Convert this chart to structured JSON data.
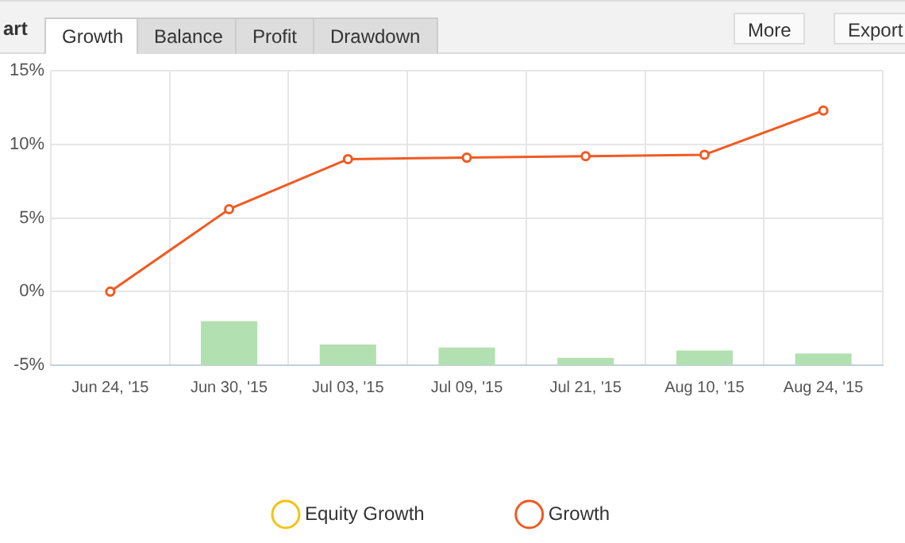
{
  "chart_data": {
    "type": "line",
    "title": "art",
    "annotations": [
      "Growth",
      "Balance",
      "Profit",
      "Drawdown",
      "More",
      "Export"
    ],
    "categories": [
      "Jun 24, '15",
      "Jun 30, '15",
      "Jul 03, '15",
      "Jul 09, '15",
      "Jul 21, '15",
      "Aug 10, '15",
      "Aug 24, '15"
    ],
    "series": [
      {
        "type": "bar",
        "color": "#b3e0b0",
        "base": [
          null,
          -5,
          -5,
          -5,
          -5,
          -5,
          -5
        ],
        "values": [
          null,
          3.0,
          1.4,
          1.2,
          0.5,
          1.0,
          0.8
        ]
      },
      {
        "name": "Equity Growth",
        "color": "#f5c211",
        "values": [
          null,
          null,
          null,
          null,
          null,
          null,
          null
        ]
      },
      {
        "name": "Growth",
        "color": "#f15a22",
        "values": [
          0,
          5.6,
          9.0,
          9.1,
          9.2,
          9.3,
          12.3
        ]
      }
    ],
    "ylim": [
      -5,
      15
    ],
    "yticks": [
      {
        "value": -5,
        "label": "-5%"
      },
      {
        "value": 0,
        "label": "0%"
      },
      {
        "value": 5,
        "label": "5%"
      },
      {
        "value": 10,
        "label": "10%"
      },
      {
        "value": 15,
        "label": "15%"
      }
    ],
    "grid": true,
    "legend": "bottom",
    "marker": "circle",
    "line_style": "solid"
  }
}
